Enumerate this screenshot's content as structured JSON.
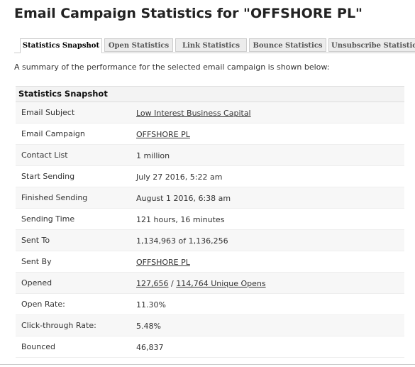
{
  "header": {
    "title": "Email Campaign Statistics for \"OFFSHORE PL\""
  },
  "tabs": [
    {
      "label": "Statistics Snapshot",
      "active": true
    },
    {
      "label": "Open Statistics",
      "active": false
    },
    {
      "label": "Link Statistics",
      "active": false
    },
    {
      "label": "Bounce Statistics",
      "active": false
    },
    {
      "label": "Unsubscribe Statistics",
      "active": false
    }
  ],
  "description": "A summary of the performance for the selected email campaign is shown below:",
  "table": {
    "title": "Statistics Snapshot",
    "rows": [
      {
        "label": "Email Subject",
        "parts": [
          {
            "text": "Low Interest Business Capital",
            "link": true
          }
        ]
      },
      {
        "label": "Email Campaign",
        "parts": [
          {
            "text": "OFFSHORE PL",
            "link": true
          }
        ]
      },
      {
        "label": "Contact List",
        "parts": [
          {
            "text": "1 million",
            "link": false
          }
        ]
      },
      {
        "label": "Start Sending",
        "parts": [
          {
            "text": "July 27 2016, 5:22 am",
            "link": false
          }
        ]
      },
      {
        "label": "Finished Sending",
        "parts": [
          {
            "text": "August 1 2016, 6:38 am",
            "link": false
          }
        ]
      },
      {
        "label": "Sending Time",
        "parts": [
          {
            "text": "121 hours, 16 minutes",
            "link": false
          }
        ]
      },
      {
        "label": "Sent To",
        "parts": [
          {
            "text": "1,134,963 of 1,136,256",
            "link": false
          }
        ]
      },
      {
        "label": "Sent By",
        "parts": [
          {
            "text": "OFFSHORE PL",
            "link": true
          }
        ]
      },
      {
        "label": "Opened",
        "parts": [
          {
            "text": "127,656",
            "link": true
          },
          {
            "text": " / ",
            "link": false
          },
          {
            "text": "114,764 Unique Opens",
            "link": true
          }
        ]
      },
      {
        "label": "Open Rate:",
        "parts": [
          {
            "text": "11.30%",
            "link": false
          }
        ]
      },
      {
        "label": "Click-through Rate:",
        "parts": [
          {
            "text": "5.48%",
            "link": false
          }
        ]
      },
      {
        "label": "Bounced",
        "parts": [
          {
            "text": "46,837",
            "link": false
          }
        ]
      }
    ]
  }
}
